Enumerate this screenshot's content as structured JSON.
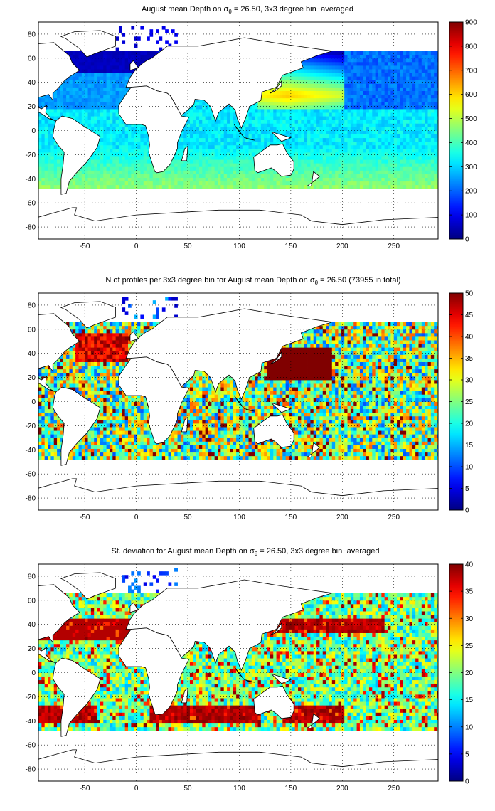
{
  "colormap": "jet",
  "land_color": "#ffffff",
  "coastline_color": "#000000",
  "chart_data": [
    {
      "type": "heatmap",
      "title_prefix": "August mean Depth on ",
      "title_symbol": "σ",
      "title_subscript": "θ",
      "title_suffix": " = 26.50, 3x3 degree bin−averaged",
      "x_ticks": [
        -50,
        0,
        50,
        100,
        150,
        200,
        250
      ],
      "y_ticks": [
        80,
        60,
        40,
        20,
        0,
        -20,
        -40,
        -60,
        -80
      ],
      "xlim": [
        -95,
        293
      ],
      "ylim": [
        -90,
        90
      ],
      "bin_size_deg": 3,
      "grid": "dotted",
      "colorbar_ticks": [
        0,
        100,
        200,
        300,
        400,
        500,
        600,
        700,
        800,
        900
      ],
      "clim": [
        0,
        900
      ],
      "variable": "mean depth"
    },
    {
      "type": "heatmap",
      "title_prefix": "N of profiles per 3x3 degree bin for August mean Depth on ",
      "title_symbol": "σ",
      "title_subscript": "θ",
      "title_suffix": " = 26.50 (73955 in total)",
      "x_ticks": [
        -50,
        0,
        50,
        100,
        150,
        200,
        250
      ],
      "y_ticks": [
        80,
        60,
        40,
        20,
        0,
        -20,
        -40,
        -60,
        -80
      ],
      "xlim": [
        -95,
        293
      ],
      "ylim": [
        -90,
        90
      ],
      "bin_size_deg": 3,
      "grid": "dotted",
      "colorbar_ticks": [
        0,
        5,
        10,
        15,
        20,
        25,
        30,
        35,
        40,
        45,
        50
      ],
      "clim": [
        0,
        50
      ],
      "total_profiles": 73955,
      "variable": "profile count"
    },
    {
      "type": "heatmap",
      "title_prefix": "St. deviation for August mean Depth on ",
      "title_symbol": "σ",
      "title_subscript": "θ",
      "title_suffix": " = 26.50, 3x3 degree bin−averaged",
      "x_ticks": [
        -50,
        0,
        50,
        100,
        150,
        200,
        250
      ],
      "y_ticks": [
        80,
        60,
        40,
        20,
        0,
        -20,
        -40,
        -60,
        -80
      ],
      "xlim": [
        -95,
        293
      ],
      "ylim": [
        -90,
        90
      ],
      "bin_size_deg": 3,
      "grid": "dotted",
      "colorbar_ticks": [
        0,
        5,
        10,
        15,
        20,
        25,
        30,
        35,
        40
      ],
      "clim": [
        0,
        40
      ],
      "variable": "standard deviation"
    }
  ]
}
